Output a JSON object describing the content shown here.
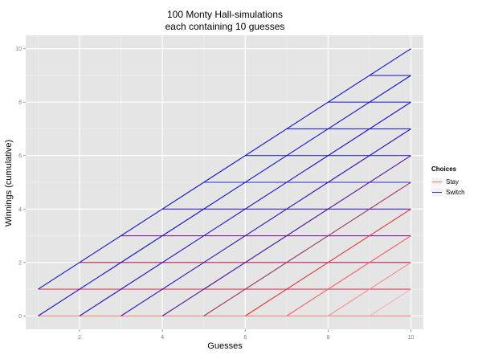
{
  "chart_data": {
    "type": "line",
    "title": "100 Monty Hall-simulations\neach containing 10 guesses",
    "xlabel": "Guesses",
    "ylabel": "Winnings (cumulative)",
    "xlim": [
      0.7,
      10.3
    ],
    "ylim": [
      -0.5,
      10.5
    ],
    "x_ticks": [
      2,
      4,
      6,
      8,
      10
    ],
    "y_ticks": [
      0,
      2,
      4,
      6,
      8,
      10
    ],
    "grid": true,
    "legend": {
      "title": "Choices",
      "position": "right",
      "entries": [
        {
          "name": "Stay",
          "color": "#F8766D"
        },
        {
          "name": "Switch",
          "color": "#3333CC"
        }
      ]
    },
    "series_note": "Each simulation is a cumulative step line over guesses 1..10; lines overlap along a lattice of horizontal (loss) and diagonal (win) segments. Segment colour shows the fraction of simulations using that edge that were Stay vs Switch.",
    "segments": {
      "horizontal_color_by_level": [
        {
          "y": 0,
          "color": "#F8766D"
        },
        {
          "y": 1,
          "color": "#E64060"
        },
        {
          "y": 2,
          "color": "#B02060"
        },
        {
          "y": 3,
          "color": "#8020A0"
        },
        {
          "y": 4,
          "color": "#4020C0"
        },
        {
          "y": 5,
          "color": "#2E2ECC"
        },
        {
          "y": 6,
          "color": "#2A2ACC"
        },
        {
          "y": 7,
          "color": "#2A2ACC"
        },
        {
          "y": 8,
          "color": "#2A2ACC"
        },
        {
          "y": 9,
          "color": "#2A2ACC"
        }
      ],
      "diagonal_color_by_start": [
        {
          "start_x": 1,
          "color": "#1010C8"
        },
        {
          "start_x": 2,
          "color": "#1A10C0"
        },
        {
          "start_x": 3,
          "color": "#3010B0"
        },
        {
          "start_x": 4,
          "color": "#5010A0"
        },
        {
          "start_x": 5,
          "color": "#A03070"
        },
        {
          "start_x": 6,
          "color": "#E03030"
        },
        {
          "start_x": 7,
          "color": "#F06060"
        },
        {
          "start_x": 8,
          "color": "#F49090"
        },
        {
          "start_x": 9,
          "color": "#F6B0B0"
        }
      ]
    }
  },
  "colors": {
    "panel_background": "#E5E5E5",
    "grid_major": "#FFFFFF",
    "grid_minor": "#F2F2F2",
    "tick": "#7f7f7f"
  }
}
